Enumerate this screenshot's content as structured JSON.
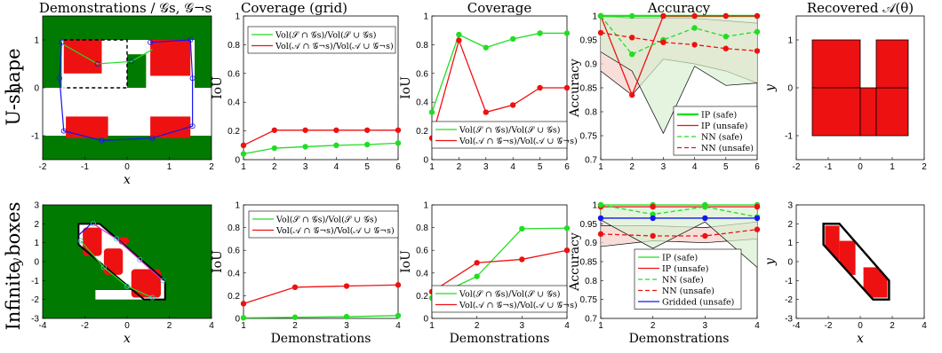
{
  "row_labels": [
    "U-shape",
    "Infinite boxes"
  ],
  "column_titles": [
    "Demonstrations / 𝒢s, 𝒢¬s",
    "Coverage (grid)",
    "Coverage",
    "Accuracy",
    "Recovered 𝒜(θ)"
  ],
  "colors": {
    "green": "#22dd22",
    "red": "#ee1111",
    "blue": "#1515ee",
    "field_green": "#007a00",
    "orange_light": "#f5d0c8",
    "green_light": "#d9efd2"
  },
  "tick_colors_6": [
    "#1515ee",
    "#ee1111",
    "#22cc22",
    "#cc33cc",
    "#33cccc",
    "#ee7711"
  ],
  "tick_colors_4": [
    "#1515ee",
    "#22cc22",
    "#cc33cc",
    "#cc33cc"
  ],
  "chart_data": [
    {
      "id": "u-shape-demonstrations",
      "type": "map",
      "title": "Demonstrations / 𝒢s, 𝒢¬s",
      "xlabel": "x",
      "ylabel": "y",
      "xlim": [
        -2,
        2
      ],
      "ylim": [
        -1.5,
        1.5
      ],
      "xticks": [
        -2,
        -1,
        0,
        1,
        2
      ],
      "yticks": [
        -1,
        0,
        1
      ],
      "unsafe_region_boxes": [
        [
          -1.5,
          0,
          0,
          1
        ],
        [
          0.5,
          -1,
          1.5,
          1
        ],
        [
          -1.5,
          -1,
          1.5,
          0
        ]
      ]
    },
    {
      "id": "u-shape-coverage-grid",
      "type": "line",
      "title": "Coverage (grid)",
      "ylabel": "IoU",
      "xlim": [
        1,
        6
      ],
      "ylim": [
        0,
        1
      ],
      "x": [
        1,
        2,
        3,
        4,
        5,
        6
      ],
      "yticks": [
        0,
        0.2,
        0.4,
        0.6,
        0.8,
        1
      ],
      "series": [
        {
          "name": "Vol(𝒮 ∩ 𝒢s)/Vol(𝒮 ∪ 𝒢s)",
          "color": "green",
          "values": [
            0.04,
            0.08,
            0.09,
            0.1,
            0.105,
            0.115
          ]
        },
        {
          "name": "Vol(𝒜 ∩ 𝒢¬s)/Vol(𝒜 ∪ 𝒢¬s)",
          "color": "red",
          "values": [
            0.1,
            0.205,
            0.205,
            0.205,
            0.205,
            0.205
          ]
        }
      ]
    },
    {
      "id": "u-shape-coverage",
      "type": "line",
      "title": "Coverage",
      "ylabel": "IoU",
      "xlim": [
        1,
        6
      ],
      "ylim": [
        0,
        1
      ],
      "x": [
        1,
        2,
        3,
        4,
        5,
        6
      ],
      "yticks": [
        0,
        0.2,
        0.4,
        0.6,
        0.8,
        1
      ],
      "series": [
        {
          "name": "Vol(𝒮 ∩ 𝒢s)/Vol(𝒮 ∪ 𝒢s)",
          "color": "green",
          "values": [
            0.33,
            0.87,
            0.78,
            0.84,
            0.88,
            0.88
          ]
        },
        {
          "name": "Vol(𝒜 ∩ 𝒢¬s)/Vol(𝒜 ∪ 𝒢¬s)",
          "color": "red",
          "values": [
            0.15,
            0.83,
            0.33,
            0.38,
            0.5,
            0.5
          ]
        }
      ]
    },
    {
      "id": "u-shape-accuracy",
      "type": "line",
      "title": "Accuracy",
      "ylabel": "Accuracy",
      "xlim": [
        1,
        6
      ],
      "ylim": [
        0.7,
        1
      ],
      "x": [
        1,
        2,
        3,
        4,
        5,
        6
      ],
      "yticks": [
        0.7,
        0.75,
        0.8,
        0.85,
        0.9,
        0.95,
        1
      ],
      "series": [
        {
          "name": "IP (safe)",
          "color": "green",
          "dash": "solid",
          "width": 2.4,
          "values": [
            1,
            1,
            1,
            1,
            1,
            1
          ]
        },
        {
          "name": "IP (unsafe)",
          "color": "red",
          "dash": "solid",
          "width": 1.3,
          "values": [
            1,
            0.835,
            1,
            1,
            1,
            1
          ]
        },
        {
          "name": "NN (safe)",
          "color": "green",
          "dash": "dashed",
          "width": 1.3,
          "values": [
            1,
            0.92,
            0.95,
            0.975,
            0.957,
            0.967
          ]
        },
        {
          "name": "NN (unsafe)",
          "color": "red",
          "dash": "dashed",
          "width": 1.3,
          "values": [
            0.965,
            0.955,
            0.945,
            0.94,
            0.932,
            0.927
          ]
        }
      ],
      "bands": [
        {
          "color": "red",
          "lower": [
            0.885,
            0.835,
            0.91,
            0.9,
            0.885,
            0.86
          ],
          "upper": [
            1,
            0.995,
            0.995,
            0.995,
            0.99,
            0.985
          ]
        },
        {
          "color": "green",
          "lower": [
            0.925,
            0.885,
            0.755,
            0.895,
            0.855,
            0.86
          ],
          "upper": [
            1,
            1,
            1,
            1,
            1,
            1
          ]
        }
      ]
    },
    {
      "id": "u-shape-recovered",
      "type": "map",
      "title": "Recovered 𝒜(θ)",
      "xlabel": "",
      "ylabel": "y",
      "xlim": [
        -2,
        2
      ],
      "ylim": [
        -1.5,
        1.5
      ],
      "xticks": [
        -2,
        -1,
        0,
        1,
        2
      ],
      "yticks": [
        -1,
        0,
        1
      ],
      "boxes": [
        [
          -1.5,
          0,
          0,
          1
        ],
        [
          -1.5,
          -1,
          0,
          0
        ],
        [
          0,
          -1,
          0.5,
          0
        ],
        [
          0.5,
          -1,
          1.5,
          0
        ],
        [
          0.5,
          0,
          1.5,
          1
        ]
      ]
    },
    {
      "id": "infinite-boxes-demonstrations",
      "type": "map",
      "xlabel": "x",
      "ylabel": "y",
      "xlim": [
        -4,
        4
      ],
      "ylim": [
        -3,
        3
      ],
      "xticks": [
        -4,
        -2,
        0,
        2,
        4
      ],
      "yticks": [
        -3,
        -2,
        -1,
        0,
        1,
        2,
        3
      ]
    },
    {
      "id": "infinite-boxes-coverage-grid",
      "type": "line",
      "xlabel": "Demonstrations",
      "ylabel": "IoU",
      "xlim": [
        1,
        4
      ],
      "ylim": [
        0,
        1
      ],
      "x": [
        1,
        2,
        3,
        4
      ],
      "yticks": [
        0,
        0.2,
        0.4,
        0.6,
        0.8,
        1
      ],
      "series": [
        {
          "name": "Vol(𝒮 ∩ 𝒢s)/Vol(𝒮 ∪ 𝒢s)",
          "color": "green",
          "values": [
            0.005,
            0.01,
            0.015,
            0.025
          ]
        },
        {
          "name": "Vol(𝒜 ∩ 𝒢¬s)/Vol(𝒜 ∪ 𝒢¬s)",
          "color": "red",
          "values": [
            0.13,
            0.275,
            0.285,
            0.295
          ]
        }
      ]
    },
    {
      "id": "infinite-boxes-coverage",
      "type": "line",
      "xlabel": "Demonstrations",
      "ylabel": "IoU",
      "xlim": [
        1,
        4
      ],
      "ylim": [
        0,
        1
      ],
      "x": [
        1,
        2,
        3,
        4
      ],
      "yticks": [
        0,
        0.2,
        0.4,
        0.6,
        0.8,
        1
      ],
      "series": [
        {
          "name": "Vol(𝒮 ∩ 𝒢s)/Vol(𝒮 ∪ 𝒢s)",
          "color": "green",
          "values": [
            0.18,
            0.37,
            0.79,
            0.795
          ]
        },
        {
          "name": "Vol(𝒜 ∩ 𝒢¬s)/Vol(𝒜 ∪ 𝒢¬s)",
          "color": "red",
          "values": [
            0.235,
            0.49,
            0.52,
            0.6
          ]
        }
      ]
    },
    {
      "id": "infinite-boxes-accuracy",
      "type": "line",
      "xlabel": "Demonstrations",
      "ylabel": "Accuracy",
      "xlim": [
        1,
        4
      ],
      "ylim": [
        0.7,
        1
      ],
      "x": [
        1,
        2,
        3,
        4
      ],
      "yticks": [
        0.7,
        0.75,
        0.8,
        0.85,
        0.9,
        0.95,
        1
      ],
      "series": [
        {
          "name": "IP (safe)",
          "color": "green",
          "dash": "solid",
          "width": 1.3,
          "values": [
            1,
            1,
            1,
            1
          ]
        },
        {
          "name": "IP (unsafe)",
          "color": "red",
          "dash": "solid",
          "width": 1.3,
          "values": [
            0.995,
            0.995,
            0.995,
            0.995
          ]
        },
        {
          "name": "NN (safe)",
          "color": "green",
          "dash": "dashed",
          "width": 1.3,
          "values": [
            1,
            0.975,
            0.995,
            0.968
          ]
        },
        {
          "name": "NN (unsafe)",
          "color": "red",
          "dash": "dashed",
          "width": 1.3,
          "values": [
            0.923,
            0.918,
            0.918,
            0.935
          ]
        },
        {
          "name": "Gridded (unsafe)",
          "color": "blue",
          "dash": "solid",
          "width": 1.3,
          "values": [
            0.965,
            0.965,
            0.965,
            0.965
          ]
        }
      ],
      "bands": [
        {
          "color": "red",
          "lower": [
            0.89,
            0.905,
            0.9,
            0.91
          ],
          "upper": [
            0.945,
            0.945,
            0.94,
            0.955
          ]
        },
        {
          "color": "green",
          "lower": [
            0.96,
            0.885,
            0.955,
            0.835
          ],
          "upper": [
            1,
            1,
            1,
            1
          ]
        }
      ]
    },
    {
      "id": "infinite-boxes-recovered",
      "type": "map",
      "xlabel": "x",
      "ylabel": "y",
      "xlim": [
        -4,
        4
      ],
      "ylim": [
        -3,
        3
      ],
      "xticks": [
        -4,
        -2,
        0,
        2,
        4
      ],
      "yticks": [
        -3,
        -2,
        -1,
        0,
        1,
        2,
        3
      ],
      "boxes": [
        [
          -2.2,
          0.1,
          -1.3,
          1.9
        ],
        [
          -1.3,
          -0.7,
          -0.3,
          1.1
        ],
        [
          0.2,
          -1.9,
          1.7,
          -0.3
        ]
      ]
    }
  ]
}
